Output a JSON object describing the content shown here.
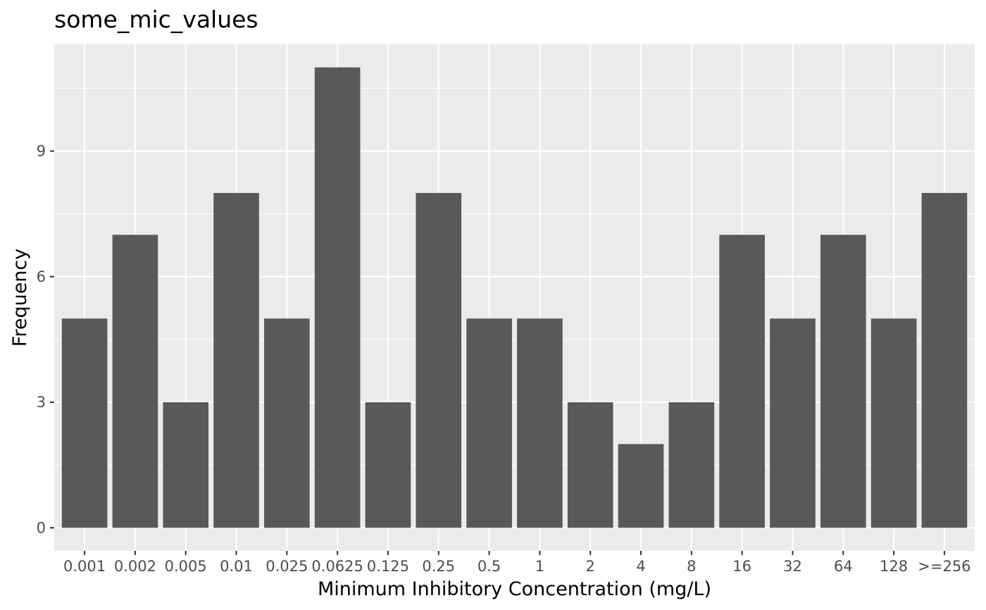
{
  "chart_data": {
    "type": "bar",
    "title": "some_mic_values",
    "xlabel": "Minimum Inhibitory Concentration (mg/L)",
    "ylabel": "Frequency",
    "categories": [
      "0.001",
      "0.002",
      "0.005",
      "0.01",
      "0.025",
      "0.0625",
      "0.125",
      "0.25",
      "0.5",
      "1",
      "2",
      "4",
      "8",
      "16",
      "32",
      "64",
      "128",
      ">=256"
    ],
    "values": [
      5,
      7,
      3,
      8,
      5,
      11,
      3,
      8,
      5,
      5,
      3,
      2,
      3,
      7,
      5,
      7,
      5,
      8
    ],
    "yticks": [
      0,
      3,
      6,
      9
    ],
    "ylim": [
      -0.55,
      11.55
    ],
    "grid": true,
    "colors": {
      "panel_background": "#ebebeb",
      "grid": "#ffffff",
      "bar_fill": "#595959",
      "tick_text": "#4d4d4d"
    }
  }
}
